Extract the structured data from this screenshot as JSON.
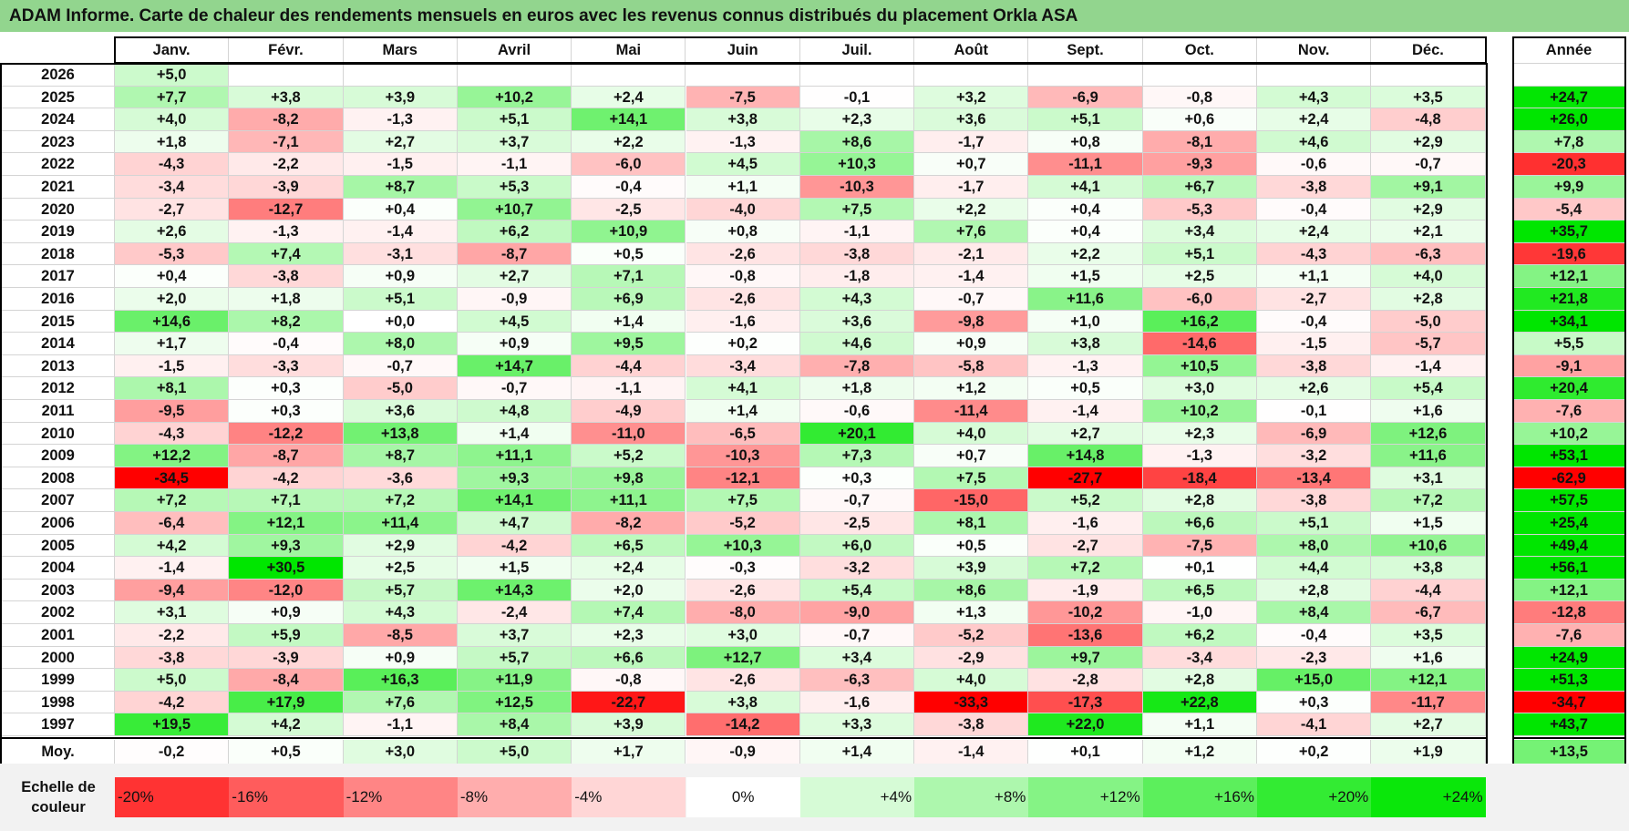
{
  "title": "ADAM Informe. Carte de chaleur des rendements mensuels en euros avec les revenus connus distribués du placement Orkla ASA",
  "months": [
    "Janv.",
    "Févr.",
    "Mars",
    "Avril",
    "Mai",
    "Juin",
    "Juil.",
    "Août",
    "Sept.",
    "Oct.",
    "Nov.",
    "Déc."
  ],
  "annual_header": "Année",
  "avg_label": "Moy.",
  "legend_title": "Echelle de couleur",
  "legend_labels": [
    "-20%",
    "-16%",
    "-12%",
    "-8%",
    "-4%",
    "0%",
    "+4%",
    "+8%",
    "+12%",
    "+16%",
    "+20%",
    "+24%"
  ],
  "colors": {
    "title_bg": "#92d58e",
    "negative_max": "#ff0000",
    "neutral": "#ffffff",
    "positive_max": "#00e000"
  },
  "chart_data": {
    "type": "heatmap",
    "title": "ADAM Informe. Carte de chaleur des rendements mensuels en euros avec les revenus connus distribués du placement Orkla ASA",
    "x": [
      "Janv.",
      "Févr.",
      "Mars",
      "Avril",
      "Mai",
      "Juin",
      "Juil.",
      "Août",
      "Sept.",
      "Oct.",
      "Nov.",
      "Déc."
    ],
    "rows": [
      {
        "year": "2026",
        "values": [
          "+5,0",
          "",
          "",
          "",
          "",
          "",
          "",
          "",
          "",
          "",
          "",
          ""
        ],
        "annual": ""
      },
      {
        "year": "2025",
        "values": [
          "+7,7",
          "+3,8",
          "+3,9",
          "+10,2",
          "+2,4",
          "-7,5",
          "-0,1",
          "+3,2",
          "-6,9",
          "-0,8",
          "+4,3",
          "+3,5"
        ],
        "annual": "+24,7"
      },
      {
        "year": "2024",
        "values": [
          "+4,0",
          "-8,2",
          "-1,3",
          "+5,1",
          "+14,1",
          "+3,8",
          "+2,3",
          "+3,6",
          "+5,1",
          "+0,6",
          "+2,4",
          "-4,8"
        ],
        "annual": "+26,0"
      },
      {
        "year": "2023",
        "values": [
          "+1,8",
          "-7,1",
          "+2,7",
          "+3,7",
          "+2,2",
          "-1,3",
          "+8,6",
          "-1,7",
          "+0,8",
          "-8,1",
          "+4,6",
          "+2,9"
        ],
        "annual": "+7,8"
      },
      {
        "year": "2022",
        "values": [
          "-4,3",
          "-2,2",
          "-1,5",
          "-1,1",
          "-6,0",
          "+4,5",
          "+10,3",
          "+0,7",
          "-11,1",
          "-9,3",
          "-0,6",
          "-0,7"
        ],
        "annual": "-20,3"
      },
      {
        "year": "2021",
        "values": [
          "-3,4",
          "-3,9",
          "+8,7",
          "+5,3",
          "-0,4",
          "+1,1",
          "-10,3",
          "-1,7",
          "+4,1",
          "+6,7",
          "-3,8",
          "+9,1"
        ],
        "annual": "+9,9"
      },
      {
        "year": "2020",
        "values": [
          "-2,7",
          "-12,7",
          "+0,4",
          "+10,7",
          "-2,5",
          "-4,0",
          "+7,5",
          "+2,2",
          "+0,4",
          "-5,3",
          "-0,4",
          "+2,9"
        ],
        "annual": "-5,4"
      },
      {
        "year": "2019",
        "values": [
          "+2,6",
          "-1,3",
          "-1,4",
          "+6,2",
          "+10,9",
          "+0,8",
          "-1,1",
          "+7,6",
          "+0,4",
          "+3,4",
          "+2,4",
          "+2,1"
        ],
        "annual": "+35,7"
      },
      {
        "year": "2018",
        "values": [
          "-5,3",
          "+7,4",
          "-3,1",
          "-8,7",
          "+0,5",
          "-2,6",
          "-3,8",
          "-2,1",
          "+2,2",
          "+5,1",
          "-4,3",
          "-6,3"
        ],
        "annual": "-19,6"
      },
      {
        "year": "2017",
        "values": [
          "+0,4",
          "-3,8",
          "+0,9",
          "+2,7",
          "+7,1",
          "-0,8",
          "-1,8",
          "-1,4",
          "+1,5",
          "+2,5",
          "+1,1",
          "+4,0"
        ],
        "annual": "+12,1"
      },
      {
        "year": "2016",
        "values": [
          "+2,0",
          "+1,8",
          "+5,1",
          "-0,9",
          "+6,9",
          "-2,6",
          "+4,3",
          "-0,7",
          "+11,6",
          "-6,0",
          "-2,7",
          "+2,8"
        ],
        "annual": "+21,8"
      },
      {
        "year": "2015",
        "values": [
          "+14,6",
          "+8,2",
          "+0,0",
          "+4,5",
          "+1,4",
          "-1,6",
          "+3,6",
          "-9,8",
          "+1,0",
          "+16,2",
          "-0,4",
          "-5,0"
        ],
        "annual": "+34,1"
      },
      {
        "year": "2014",
        "values": [
          "+1,7",
          "-0,4",
          "+8,0",
          "+0,9",
          "+9,5",
          "+0,2",
          "+4,6",
          "+0,9",
          "+3,8",
          "-14,6",
          "-1,5",
          "-5,7"
        ],
        "annual": "+5,5"
      },
      {
        "year": "2013",
        "values": [
          "-1,5",
          "-3,3",
          "-0,7",
          "+14,7",
          "-4,4",
          "-3,4",
          "-7,8",
          "-5,8",
          "-1,3",
          "+10,5",
          "-3,8",
          "-1,4"
        ],
        "annual": "-9,1"
      },
      {
        "year": "2012",
        "values": [
          "+8,1",
          "+0,3",
          "-5,0",
          "-0,7",
          "-1,1",
          "+4,1",
          "+1,8",
          "+1,2",
          "+0,5",
          "+3,0",
          "+2,6",
          "+5,4"
        ],
        "annual": "+20,4"
      },
      {
        "year": "2011",
        "values": [
          "-9,5",
          "+0,3",
          "+3,6",
          "+4,8",
          "-4,9",
          "+1,4",
          "-0,6",
          "-11,4",
          "-1,4",
          "+10,2",
          "-0,1",
          "+1,6"
        ],
        "annual": "-7,6"
      },
      {
        "year": "2010",
        "values": [
          "-4,3",
          "-12,2",
          "+13,8",
          "+1,4",
          "-11,0",
          "-6,5",
          "+20,1",
          "+4,0",
          "+2,7",
          "+2,3",
          "-6,9",
          "+12,6"
        ],
        "annual": "+10,2"
      },
      {
        "year": "2009",
        "values": [
          "+12,2",
          "-8,7",
          "+8,7",
          "+11,1",
          "+5,2",
          "-10,3",
          "+7,3",
          "+0,7",
          "+14,8",
          "-1,3",
          "-3,2",
          "+11,6"
        ],
        "annual": "+53,1"
      },
      {
        "year": "2008",
        "values": [
          "-34,5",
          "-4,2",
          "-3,6",
          "+9,3",
          "+9,8",
          "-12,1",
          "+0,3",
          "+7,5",
          "-27,7",
          "-18,4",
          "-13,4",
          "+3,1"
        ],
        "annual": "-62,9"
      },
      {
        "year": "2007",
        "values": [
          "+7,2",
          "+7,1",
          "+7,2",
          "+14,1",
          "+11,1",
          "+7,5",
          "-0,7",
          "-15,0",
          "+5,2",
          "+2,8",
          "-3,8",
          "+7,2"
        ],
        "annual": "+57,5"
      },
      {
        "year": "2006",
        "values": [
          "-6,4",
          "+12,1",
          "+11,4",
          "+4,7",
          "-8,2",
          "-5,2",
          "-2,5",
          "+8,1",
          "-1,6",
          "+6,6",
          "+5,1",
          "+1,5"
        ],
        "annual": "+25,4"
      },
      {
        "year": "2005",
        "values": [
          "+4,2",
          "+9,3",
          "+2,9",
          "-4,2",
          "+6,5",
          "+10,3",
          "+6,0",
          "+0,5",
          "-2,7",
          "-7,5",
          "+8,0",
          "+10,6"
        ],
        "annual": "+49,4"
      },
      {
        "year": "2004",
        "values": [
          "-1,4",
          "+30,5",
          "+2,5",
          "+1,5",
          "+2,4",
          "-0,3",
          "-3,2",
          "+3,9",
          "+7,2",
          "+0,1",
          "+4,4",
          "+3,8"
        ],
        "annual": "+56,1"
      },
      {
        "year": "2003",
        "values": [
          "-9,4",
          "-12,0",
          "+5,7",
          "+14,3",
          "+2,0",
          "-2,6",
          "+5,4",
          "+8,6",
          "-1,9",
          "+6,5",
          "+2,8",
          "-4,4"
        ],
        "annual": "+12,1"
      },
      {
        "year": "2002",
        "values": [
          "+3,1",
          "+0,9",
          "+4,3",
          "-2,4",
          "+7,4",
          "-8,0",
          "-9,0",
          "+1,3",
          "-10,2",
          "-1,0",
          "+8,4",
          "-6,7"
        ],
        "annual": "-12,8"
      },
      {
        "year": "2001",
        "values": [
          "-2,2",
          "+5,9",
          "-8,5",
          "+3,7",
          "+2,3",
          "+3,0",
          "-0,7",
          "-5,2",
          "-13,6",
          "+6,2",
          "-0,4",
          "+3,5"
        ],
        "annual": "-7,6"
      },
      {
        "year": "2000",
        "values": [
          "-3,8",
          "-3,9",
          "+0,9",
          "+5,7",
          "+6,6",
          "+12,7",
          "+3,4",
          "-2,9",
          "+9,7",
          "-3,4",
          "-2,3",
          "+1,6"
        ],
        "annual": "+24,9"
      },
      {
        "year": "1999",
        "values": [
          "+5,0",
          "-8,4",
          "+16,3",
          "+11,9",
          "-0,8",
          "-2,6",
          "-6,3",
          "+4,0",
          "-2,8",
          "+2,8",
          "+15,0",
          "+12,1"
        ],
        "annual": "+51,3"
      },
      {
        "year": "1998",
        "values": [
          "-4,2",
          "+17,9",
          "+7,6",
          "+12,5",
          "-22,7",
          "+3,8",
          "-1,6",
          "-33,3",
          "-17,3",
          "+22,8",
          "+0,3",
          "-11,7"
        ],
        "annual": "-34,7"
      },
      {
        "year": "1997",
        "values": [
          "+19,5",
          "+4,2",
          "-1,1",
          "+8,4",
          "+3,9",
          "-14,2",
          "+3,3",
          "-3,8",
          "+22,0",
          "+1,1",
          "-4,1",
          "+2,7"
        ],
        "annual": "+43,7"
      }
    ],
    "average": {
      "values": [
        "-0,2",
        "+0,5",
        "+3,0",
        "+5,0",
        "+1,7",
        "-0,9",
        "+1,4",
        "-1,4",
        "+0,1",
        "+1,2",
        "+0,2",
        "+1,9"
      ],
      "annual": "+13,5"
    },
    "color_scale": [
      -20,
      -16,
      -12,
      -8,
      -4,
      0,
      4,
      8,
      12,
      16,
      20,
      24
    ]
  }
}
